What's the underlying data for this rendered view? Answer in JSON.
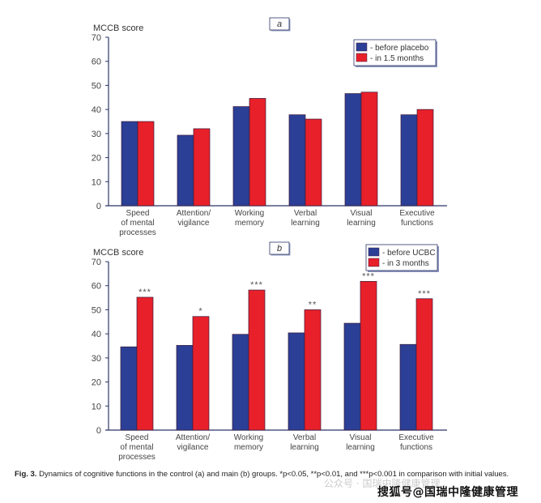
{
  "chart_data": [
    {
      "type": "bar",
      "panel": "a",
      "title": "",
      "ylabel": "MCCB score",
      "xlabel": "",
      "ylim": [
        0,
        70
      ],
      "yticks": [
        0,
        10,
        20,
        30,
        40,
        50,
        60,
        70
      ],
      "grid": false,
      "legend_position": "top-right",
      "categories": [
        [
          "Speed",
          "of mental",
          "processes"
        ],
        [
          "Attention/",
          "vigilance"
        ],
        [
          "Working",
          "memory"
        ],
        [
          "Verbal",
          "learning"
        ],
        [
          "Visual",
          "learning"
        ],
        [
          "Executive",
          "functions"
        ]
      ],
      "series": [
        {
          "name": "- before placebo",
          "color": "#2b3f96",
          "values": [
            35.0,
            29.3,
            41.2,
            37.8,
            46.6,
            37.8
          ]
        },
        {
          "name": "- in 1.5 months",
          "color": "#e8202a",
          "values": [
            35.0,
            32.0,
            44.6,
            36.0,
            47.2,
            40.0
          ]
        }
      ],
      "annotations": [
        "",
        "",
        "",
        "",
        "",
        ""
      ]
    },
    {
      "type": "bar",
      "panel": "b",
      "title": "",
      "ylabel": "MCCB score",
      "xlabel": "",
      "ylim": [
        0,
        70
      ],
      "yticks": [
        0,
        10,
        20,
        30,
        40,
        50,
        60,
        70
      ],
      "grid": false,
      "legend_position": "top-right",
      "categories": [
        [
          "Speed",
          "of mental",
          "processes"
        ],
        [
          "Attention/",
          "vigilance"
        ],
        [
          "Working",
          "memory"
        ],
        [
          "Verbal",
          "learning"
        ],
        [
          "Visual",
          "learning"
        ],
        [
          "Executive",
          "functions"
        ]
      ],
      "series": [
        {
          "name": "- before UCBC",
          "color": "#2b3f96",
          "values": [
            34.6,
            35.2,
            39.8,
            40.4,
            44.4,
            35.6
          ]
        },
        {
          "name": "- in 3 months",
          "color": "#e8202a",
          "values": [
            55.2,
            47.2,
            58.2,
            50.0,
            61.8,
            54.6
          ]
        }
      ],
      "annotations": [
        "***",
        "*",
        "***",
        "**",
        "***",
        "***"
      ]
    }
  ],
  "caption": {
    "label": "Fig. 3.",
    "text": " Dynamics of cognitive functions in the control (a) and main (b) groups. *p<0.05, **p<0.01, and ***p<0.001 in comparison with initial values."
  },
  "watermarks": {
    "wechat": "公众号 · 国瑞中隆健康管理",
    "sohu": "搜狐号@国瑞中隆健康管理"
  }
}
